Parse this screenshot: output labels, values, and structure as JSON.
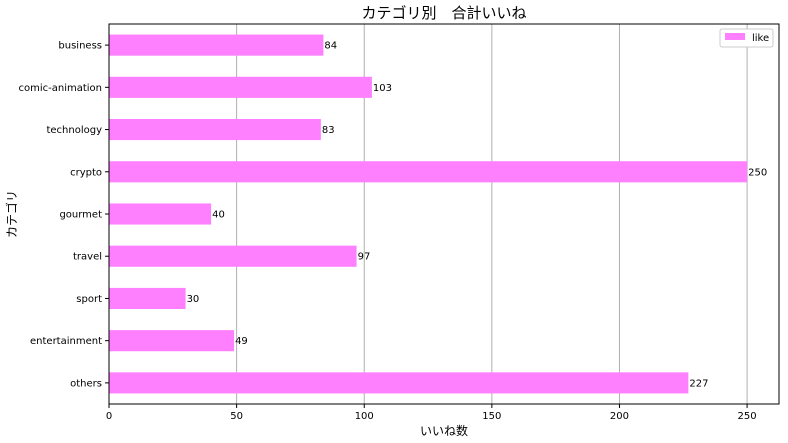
{
  "chart_data": {
    "type": "bar",
    "orientation": "horizontal",
    "title": "カテゴリ別　合計いいね",
    "xlabel": "いいね数",
    "ylabel": "カテゴリ",
    "categories": [
      "business",
      "comic-animation",
      "technology",
      "crypto",
      "gourmet",
      "travel",
      "sport",
      "entertainment",
      "others"
    ],
    "series": [
      {
        "name": "like",
        "values": [
          84,
          103,
          83,
          250,
          40,
          97,
          30,
          49,
          227
        ],
        "color": "#ff80ff"
      }
    ],
    "xlim": [
      0,
      262.5
    ],
    "xticks": [
      0,
      50,
      100,
      150,
      200,
      250
    ],
    "grid": "x-major",
    "legend_position": "top-right",
    "data_labels": true
  }
}
